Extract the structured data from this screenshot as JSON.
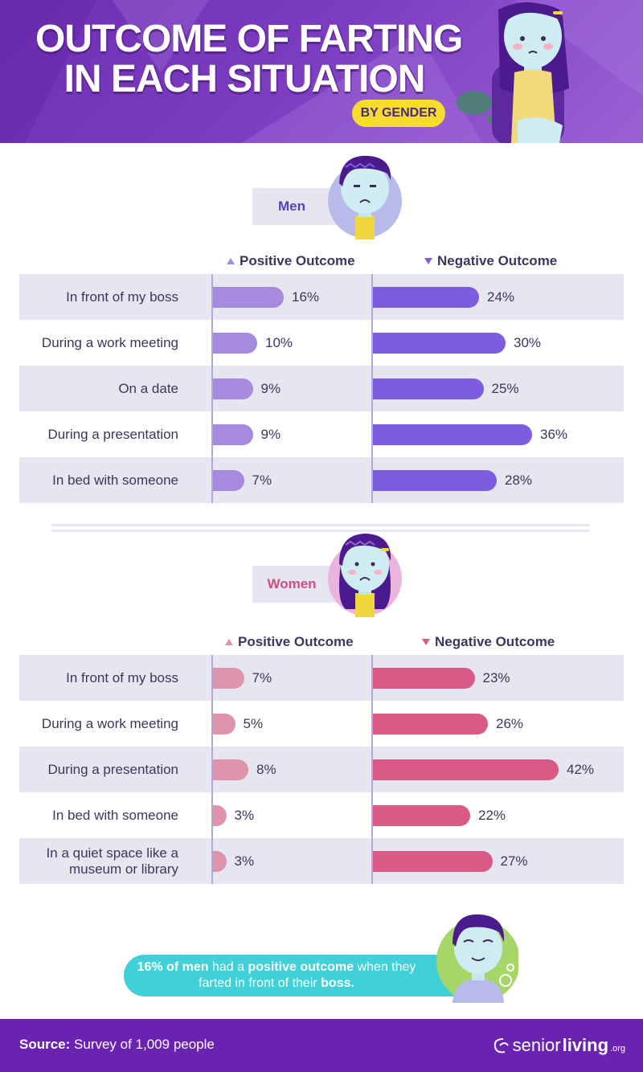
{
  "header": {
    "title_line1": "OUTCOME OF FARTING",
    "title_line2": "IN EACH SITUATION",
    "subtitle": "BY GENDER"
  },
  "colors": {
    "men_positive": "#a68ade",
    "men_negative": "#7d5ce0",
    "women_positive": "#e094ac",
    "women_negative": "#d75b86",
    "men_label": "#5b3ec4",
    "women_label": "#d34d7d"
  },
  "legend": {
    "positive": "Positive Outcome",
    "negative": "Negative Outcome"
  },
  "chart_data": [
    {
      "type": "bar",
      "title": "Men",
      "categories": [
        "In front of my boss",
        "During a work meeting",
        "On a date",
        "During a presentation",
        "In bed with someone"
      ],
      "series": [
        {
          "name": "Positive Outcome",
          "values": [
            16,
            10,
            9,
            9,
            7
          ],
          "labels": [
            "16%",
            "10%",
            "9%",
            "9%",
            "7%"
          ]
        },
        {
          "name": "Negative Outcome",
          "values": [
            24,
            30,
            25,
            36,
            28
          ],
          "labels": [
            "24%",
            "30%",
            "25%",
            "36%",
            "28%"
          ]
        }
      ],
      "unit": "%"
    },
    {
      "type": "bar",
      "title": "Women",
      "categories": [
        "In front of my boss",
        "During a work meeting",
        "During a presentation",
        "In bed with someone",
        "In a quiet space like a museum or library"
      ],
      "series": [
        {
          "name": "Positive Outcome",
          "values": [
            7,
            5,
            8,
            3,
            3
          ],
          "labels": [
            "7%",
            "5%",
            "8%",
            "3%",
            "3%"
          ]
        },
        {
          "name": "Negative Outcome",
          "values": [
            23,
            26,
            42,
            22,
            27
          ],
          "labels": [
            "23%",
            "26%",
            "42%",
            "22%",
            "27%"
          ]
        }
      ],
      "unit": "%"
    }
  ],
  "callout": {
    "pct": "16% of men",
    "t1": " had a ",
    "emph": "positive outcome",
    "t2": " when they farted in front of their ",
    "boss": "boss",
    "end": "."
  },
  "footer": {
    "source_label": "Source:",
    "source_text": " Survey of 1,009 people",
    "brand_a": "senior",
    "brand_b": "living",
    "brand_c": ".org"
  },
  "icons": [
    "girl-illustration",
    "man-avatar",
    "woman-avatar",
    "smiling-man-illustration",
    "thought-bubble-icon",
    "senior-living-logo"
  ]
}
